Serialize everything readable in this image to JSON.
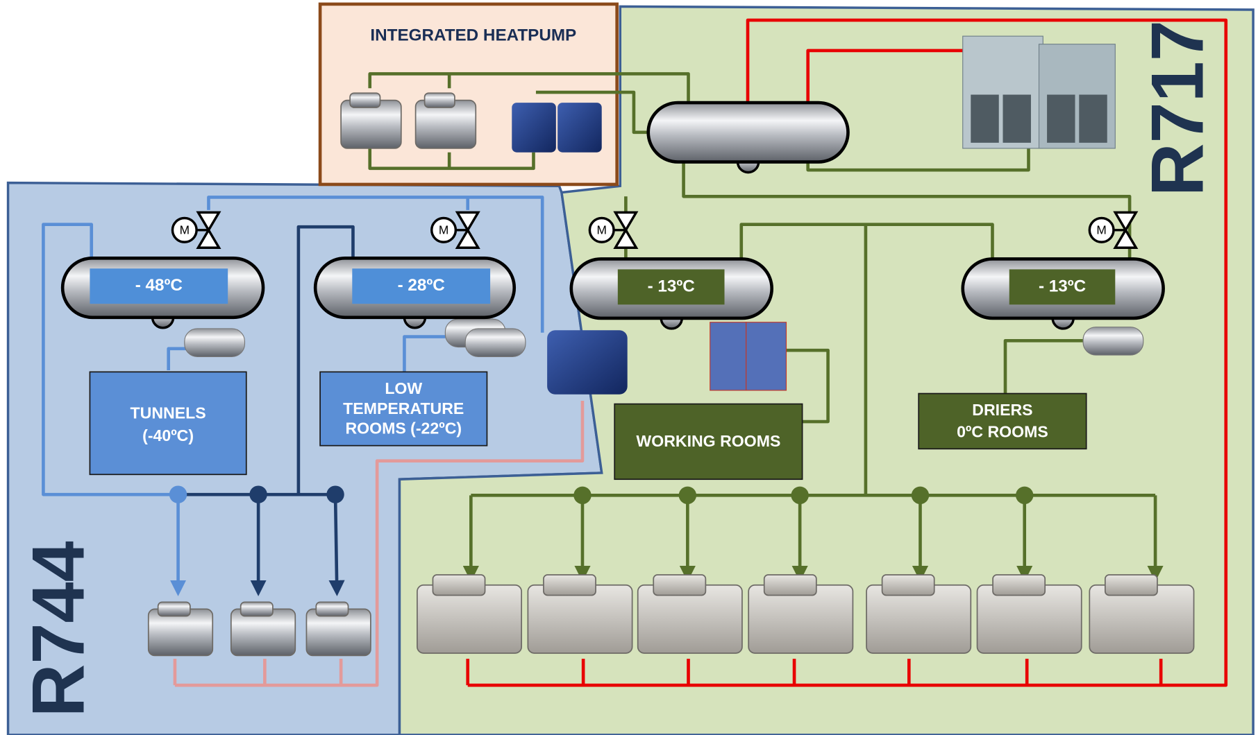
{
  "header": {
    "title": "INTEGRATED HEATPUMP"
  },
  "systems": {
    "r717": "R717",
    "r744": "R744"
  },
  "vessels": [
    {
      "label": "- 48ºC"
    },
    {
      "label": "- 28ºC"
    },
    {
      "label": "- 13ºC"
    },
    {
      "label": "- 13ºC"
    }
  ],
  "rooms": [
    {
      "lines": [
        "TUNNELS",
        "(-40ºC)"
      ]
    },
    {
      "lines": [
        "LOW",
        "TEMPERATURE",
        "ROOMS (-22ºC)"
      ]
    },
    {
      "lines": [
        "WORKING ROOMS"
      ]
    },
    {
      "lines": [
        "DRIERS",
        "0ºC ROOMS"
      ]
    }
  ],
  "valve_label": "M"
}
